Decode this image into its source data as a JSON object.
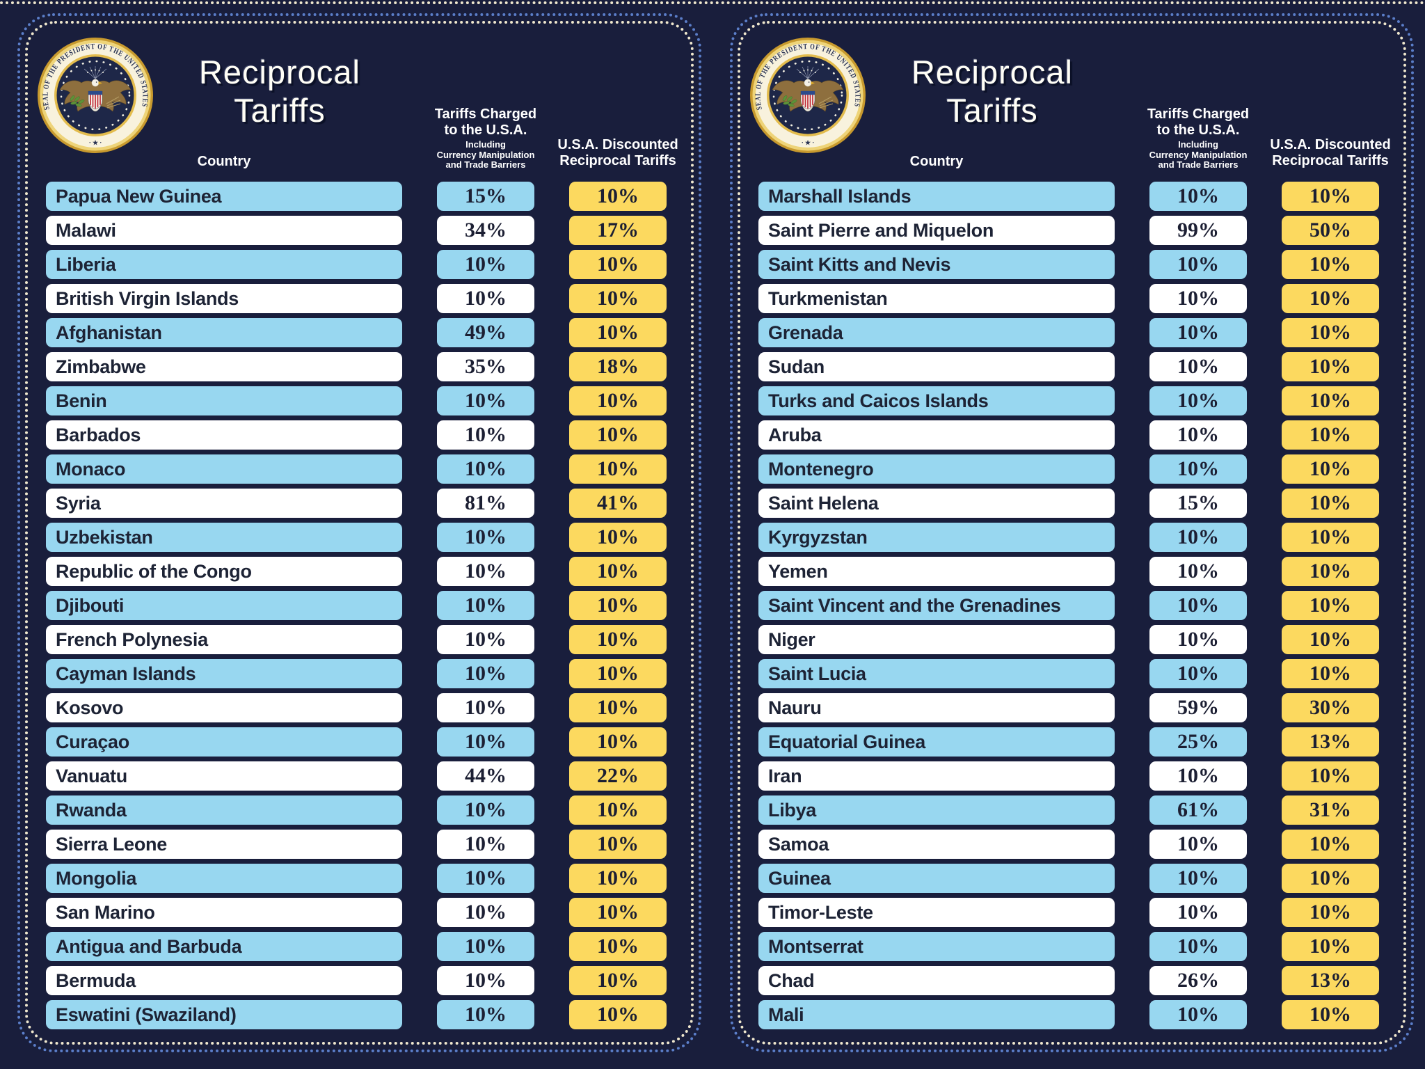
{
  "labels": {
    "title": "Reciprocal Tariffs",
    "country_header": "Country",
    "charged_header_line1": "Tariffs Charged",
    "charged_header_line2": "to the U.S.A.",
    "charged_sub_line1": "Including",
    "charged_sub_line2": "Currency Manipulation",
    "charged_sub_line3": "and Trade Barriers",
    "discounted_header_line1": "U.S.A. Discounted",
    "discounted_header_line2": "Reciprocal Tariffs"
  },
  "seal": {
    "ring_text": "SEAL OF THE PRESIDENT OF THE UNITED STATES",
    "bottom_separator": "· ★ ·"
  },
  "colors": {
    "background_navy": "#191e3c",
    "row_blue": "#98d7f0",
    "row_white": "#ffffff",
    "value_yellow": "#fcd95f",
    "border_dots_blue": "#5b7ec9",
    "border_dots_cream": "#efe7cd",
    "box_text_dark": "#1c1f33",
    "header_text_white": "#ffffff"
  },
  "layout": {
    "panels": 2,
    "rows_per_panel": 25
  },
  "chart_data": {
    "type": "table",
    "title": "Reciprocal Tariffs",
    "columns": [
      "Country",
      "Tariffs Charged to the U.S.A. Including Currency Manipulation and Trade Barriers",
      "U.S.A. Discounted Reciprocal Tariffs"
    ],
    "rows": [
      [
        "Papua New Guinea",
        "15%",
        "10%"
      ],
      [
        "Malawi",
        "34%",
        "17%"
      ],
      [
        "Liberia",
        "10%",
        "10%"
      ],
      [
        "British Virgin Islands",
        "10%",
        "10%"
      ],
      [
        "Afghanistan",
        "49%",
        "10%"
      ],
      [
        "Zimbabwe",
        "35%",
        "18%"
      ],
      [
        "Benin",
        "10%",
        "10%"
      ],
      [
        "Barbados",
        "10%",
        "10%"
      ],
      [
        "Monaco",
        "10%",
        "10%"
      ],
      [
        "Syria",
        "81%",
        "41%"
      ],
      [
        "Uzbekistan",
        "10%",
        "10%"
      ],
      [
        "Republic of the Congo",
        "10%",
        "10%"
      ],
      [
        "Djibouti",
        "10%",
        "10%"
      ],
      [
        "French Polynesia",
        "10%",
        "10%"
      ],
      [
        "Cayman Islands",
        "10%",
        "10%"
      ],
      [
        "Kosovo",
        "10%",
        "10%"
      ],
      [
        "Curaçao",
        "10%",
        "10%"
      ],
      [
        "Vanuatu",
        "44%",
        "22%"
      ],
      [
        "Rwanda",
        "10%",
        "10%"
      ],
      [
        "Sierra Leone",
        "10%",
        "10%"
      ],
      [
        "Mongolia",
        "10%",
        "10%"
      ],
      [
        "San Marino",
        "10%",
        "10%"
      ],
      [
        "Antigua and Barbuda",
        "10%",
        "10%"
      ],
      [
        "Bermuda",
        "10%",
        "10%"
      ],
      [
        "Eswatini (Swaziland)",
        "10%",
        "10%"
      ],
      [
        "Marshall Islands",
        "10%",
        "10%"
      ],
      [
        "Saint Pierre and Miquelon",
        "99%",
        "50%"
      ],
      [
        "Saint Kitts and Nevis",
        "10%",
        "10%"
      ],
      [
        "Turkmenistan",
        "10%",
        "10%"
      ],
      [
        "Grenada",
        "10%",
        "10%"
      ],
      [
        "Sudan",
        "10%",
        "10%"
      ],
      [
        "Turks and Caicos Islands",
        "10%",
        "10%"
      ],
      [
        "Aruba",
        "10%",
        "10%"
      ],
      [
        "Montenegro",
        "10%",
        "10%"
      ],
      [
        "Saint Helena",
        "15%",
        "10%"
      ],
      [
        "Kyrgyzstan",
        "10%",
        "10%"
      ],
      [
        "Yemen",
        "10%",
        "10%"
      ],
      [
        "Saint Vincent and the Grenadines",
        "10%",
        "10%"
      ],
      [
        "Niger",
        "10%",
        "10%"
      ],
      [
        "Saint Lucia",
        "10%",
        "10%"
      ],
      [
        "Nauru",
        "59%",
        "30%"
      ],
      [
        "Equatorial Guinea",
        "25%",
        "13%"
      ],
      [
        "Iran",
        "10%",
        "10%"
      ],
      [
        "Libya",
        "61%",
        "31%"
      ],
      [
        "Samoa",
        "10%",
        "10%"
      ],
      [
        "Guinea",
        "10%",
        "10%"
      ],
      [
        "Timor-Leste",
        "10%",
        "10%"
      ],
      [
        "Montserrat",
        "10%",
        "10%"
      ],
      [
        "Chad",
        "26%",
        "13%"
      ],
      [
        "Mali",
        "10%",
        "10%"
      ]
    ]
  }
}
